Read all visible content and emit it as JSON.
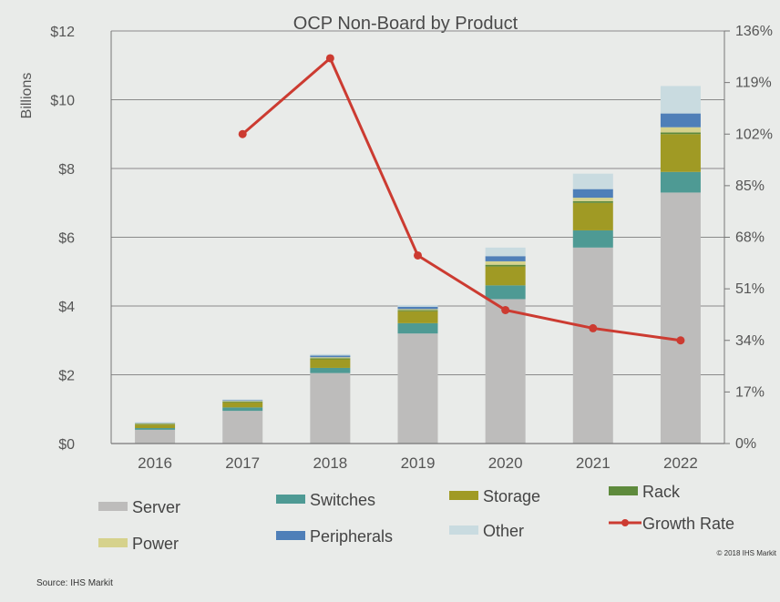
{
  "chart_data": {
    "type": "bar",
    "stacked": true,
    "title": "OCP Non-Board by Product",
    "ylabel": "Billions",
    "ylim": [
      0,
      12
    ],
    "y_ticks": [
      "$0",
      "$2",
      "$4",
      "$6",
      "$8",
      "$10",
      "$12"
    ],
    "y2lim": [
      0,
      136
    ],
    "y2_ticks": [
      "0%",
      "17%",
      "34%",
      "51%",
      "68%",
      "85%",
      "102%",
      "119%",
      "136%"
    ],
    "categories": [
      "2016",
      "2017",
      "2018",
      "2019",
      "2020",
      "2021",
      "2022"
    ],
    "grid": "horizontal",
    "legend_position": "bottom",
    "series": [
      {
        "name": "Server",
        "color": "#bdbcbb",
        "values": [
          0.4,
          0.95,
          2.05,
          3.2,
          4.2,
          5.7,
          7.3
        ]
      },
      {
        "name": "Switches",
        "color": "#4e9a94",
        "values": [
          0.05,
          0.1,
          0.15,
          0.3,
          0.4,
          0.5,
          0.6
        ]
      },
      {
        "name": "Storage",
        "color": "#a09a24",
        "values": [
          0.1,
          0.15,
          0.25,
          0.35,
          0.55,
          0.8,
          1.1
        ]
      },
      {
        "name": "Rack",
        "color": "#5e8a3c",
        "values": [
          0.02,
          0.02,
          0.03,
          0.03,
          0.05,
          0.05,
          0.05
        ]
      },
      {
        "name": "Power",
        "color": "#d6d28c",
        "values": [
          0.02,
          0.02,
          0.03,
          0.03,
          0.1,
          0.1,
          0.15
        ]
      },
      {
        "name": "Peripherals",
        "color": "#4f7fb8",
        "values": [
          0.01,
          0.02,
          0.05,
          0.07,
          0.15,
          0.25,
          0.4
        ]
      },
      {
        "name": "Other",
        "color": "#c9dbe0",
        "values": [
          0.02,
          0.02,
          0.04,
          0.05,
          0.25,
          0.45,
          0.8
        ]
      }
    ],
    "line_series": {
      "name": "Growth Rate",
      "color": "#cc3b31",
      "axis": "right",
      "values": [
        null,
        102,
        127,
        62,
        44,
        38,
        34
      ]
    }
  },
  "legend_items": [
    {
      "label": "Server",
      "kind": "swatch",
      "color": "#bdbcbb"
    },
    {
      "label": "Switches",
      "kind": "swatch",
      "color": "#4e9a94"
    },
    {
      "label": "Storage",
      "kind": "swatch",
      "color": "#a09a24"
    },
    {
      "label": "Rack",
      "kind": "swatch",
      "color": "#5e8a3c"
    },
    {
      "label": "Power",
      "kind": "swatch",
      "color": "#d6d28c"
    },
    {
      "label": "Peripherals",
      "kind": "swatch",
      "color": "#4f7fb8"
    },
    {
      "label": "Other",
      "kind": "swatch",
      "color": "#c9dbe0"
    },
    {
      "label": "Growth Rate",
      "kind": "line",
      "color": "#cc3b31"
    }
  ],
  "footer": {
    "source": "Source: IHS Markit",
    "copyright": "© 2018 IHS Markit"
  }
}
